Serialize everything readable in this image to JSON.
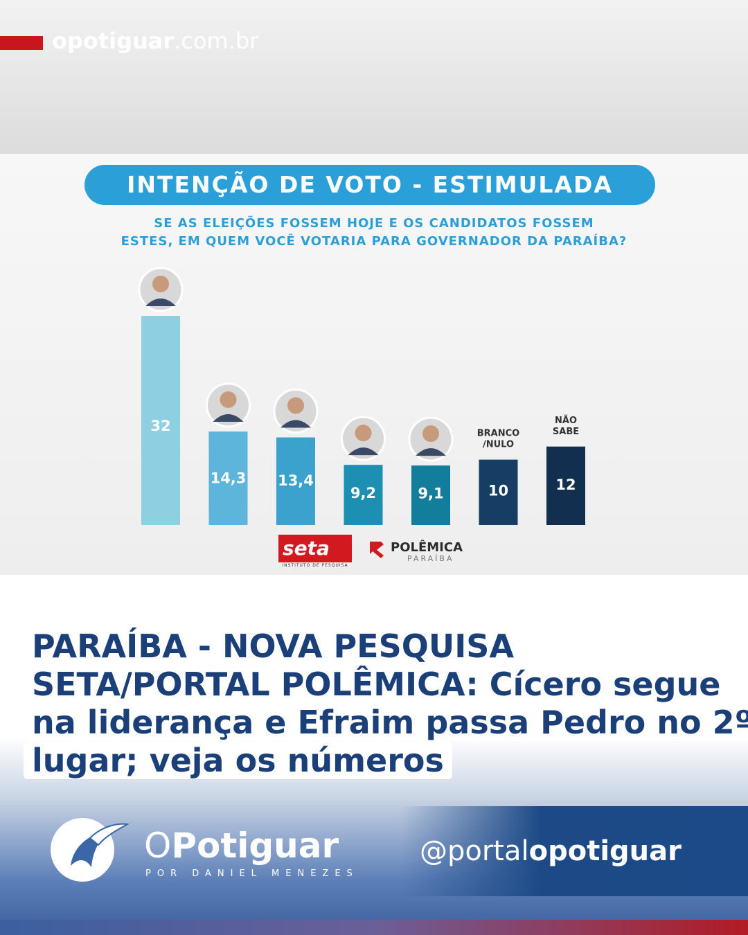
{
  "site": {
    "url_bold": "opotiguar",
    "url_rest": ".com.br"
  },
  "chart_data": {
    "type": "bar",
    "title": "INTENÇÃO DE VOTO - ESTIMULADA",
    "subtitle_line1": "SE AS ELEIÇÕES FOSSEM HOJE E OS CANDIDATOS FOSSEM",
    "subtitle_line2": "ESTES, EM QUEM VOCÊ VOTARIA PARA GOVERNADOR DA PARAÍBA?",
    "categories": [
      "",
      "",
      "",
      "",
      "",
      "BRANCO /NULO",
      "NÃO SABE"
    ],
    "values": [
      32,
      14.3,
      13.4,
      9.2,
      9.1,
      10,
      12
    ],
    "value_labels": [
      "32",
      "14,3",
      "13,4",
      "9,2",
      "9,1",
      "10",
      "12"
    ],
    "colors": [
      "#8fcfe2",
      "#5db5db",
      "#3aa2cc",
      "#1c8fb2",
      "#127e9c",
      "#163e64",
      "#132f4f"
    ],
    "ylim": [
      0,
      32
    ]
  },
  "logos": {
    "seta": "seta",
    "seta_sub": "INSTITUTO DE PESQUISA",
    "polemica": "POLÊMICA",
    "polemica_sub": "PARAÍBA"
  },
  "headline": {
    "line1": "PARAÍBA - NOVA PESQUISA",
    "line2": "SETA/PORTAL POLÊMICA: Cícero segue",
    "line3": "na liderança e Efraim passa Pedro no 2º",
    "line4": "lugar; veja os números"
  },
  "footer": {
    "brand_o": "O",
    "brand_rest": "Potiguar",
    "brand_sub": "POR DANIEL MENEZES",
    "handle_prefix": "@portal",
    "handle_bold": "opotiguar"
  }
}
